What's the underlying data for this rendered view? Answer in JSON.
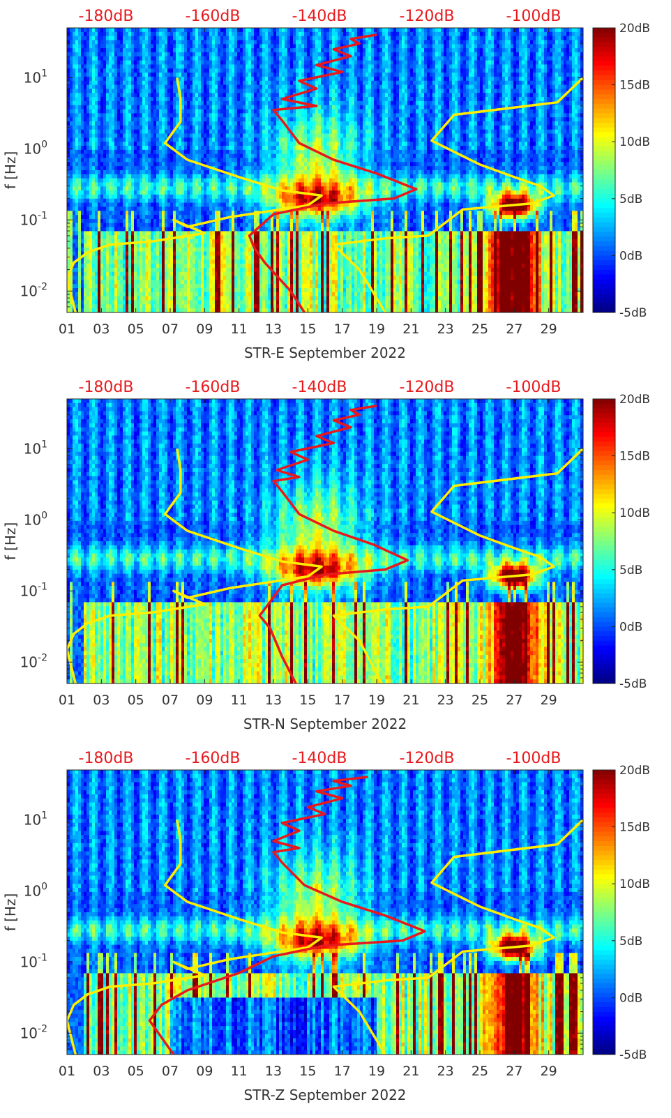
{
  "colors": {
    "spectrum_curve": "#ffee00",
    "noise_curve": "#e8191c",
    "top_axis_label": "#e8191c",
    "colormap": "jet"
  },
  "colorbar": {
    "ticks": [
      "20dB",
      "15dB",
      "10dB",
      "5dB",
      "0dB",
      "-5dB"
    ],
    "range": [
      -5,
      20
    ]
  },
  "top_axis": {
    "ticks": [
      "-180dB",
      "-160dB",
      "-140dB",
      "-120dB",
      "-100dB"
    ]
  },
  "chart_data": [
    {
      "type": "heatmap",
      "title": "",
      "xlabel": "STR-E September 2022",
      "ylabel": "f [Hz]",
      "x_ticks": [
        "01",
        "03",
        "05",
        "07",
        "09",
        "11",
        "13",
        "15",
        "17",
        "19",
        "21",
        "23",
        "25",
        "27",
        "29"
      ],
      "y_ticks": [
        "10^1",
        "10^0",
        "10^-1",
        "10^-2"
      ],
      "y_scale": "log",
      "ylim": [
        0.005,
        50
      ],
      "xlim": [
        1,
        31
      ],
      "overlays": [
        {
          "color": "yellow",
          "points": [
            [
              7.4,
              10
            ],
            [
              7.6,
              5
            ],
            [
              7.6,
              2.4
            ],
            [
              6.7,
              1.2
            ],
            [
              8,
              0.7
            ],
            [
              11,
              0.4
            ],
            [
              13.5,
              0.26
            ],
            [
              15.8,
              0.22
            ],
            [
              15,
              0.16
            ],
            [
              10.5,
              0.11
            ],
            [
              8,
              0.08
            ],
            [
              7.2,
              0.1
            ],
            [
              9,
              0.065
            ],
            [
              6,
              0.05
            ],
            [
              3.5,
              0.045
            ],
            [
              2.2,
              0.035
            ],
            [
              1.4,
              0.025
            ],
            [
              1,
              0.015
            ],
            [
              1.5,
              0.005
            ]
          ]
        },
        {
          "color": "yellow",
          "points": [
            [
              31,
              10
            ],
            [
              29.5,
              4.5
            ],
            [
              23.5,
              3
            ],
            [
              22.2,
              1.3
            ],
            [
              25,
              0.6
            ],
            [
              27,
              0.4
            ],
            [
              28.5,
              0.3
            ],
            [
              29.3,
              0.22
            ],
            [
              28,
              0.17
            ],
            [
              24,
              0.14
            ],
            [
              22,
              0.06
            ],
            [
              19.5,
              0.055
            ],
            [
              16.5,
              0.045
            ],
            [
              18,
              0.02
            ],
            [
              19.5,
              0.005
            ]
          ]
        },
        {
          "color": "red",
          "points": [
            [
              19,
              40
            ],
            [
              17.5,
              35
            ],
            [
              18,
              30
            ],
            [
              16.5,
              25
            ],
            [
              17.5,
              20
            ],
            [
              15.5,
              15
            ],
            [
              17,
              12
            ],
            [
              14.5,
              9
            ],
            [
              15.5,
              7
            ],
            [
              13.5,
              5
            ],
            [
              15.5,
              4
            ],
            [
              13,
              3.5
            ],
            [
              13.5,
              2.5
            ],
            [
              14.5,
              1.2
            ],
            [
              16.5,
              0.7
            ],
            [
              19,
              0.45
            ],
            [
              21.3,
              0.27
            ],
            [
              20,
              0.2
            ],
            [
              16,
              0.17
            ],
            [
              13,
              0.12
            ],
            [
              11.6,
              0.06
            ],
            [
              11.9,
              0.04
            ],
            [
              12.5,
              0.025
            ],
            [
              14,
              0.01
            ],
            [
              14.8,
              0.005
            ]
          ]
        }
      ]
    },
    {
      "type": "heatmap",
      "title": "",
      "xlabel": "STR-N September 2022",
      "ylabel": "f [Hz]",
      "x_ticks": [
        "01",
        "03",
        "05",
        "07",
        "09",
        "11",
        "13",
        "15",
        "17",
        "19",
        "21",
        "23",
        "25",
        "27",
        "29"
      ],
      "y_ticks": [
        "10^1",
        "10^0",
        "10^-1",
        "10^-2"
      ],
      "y_scale": "log",
      "ylim": [
        0.005,
        50
      ],
      "xlim": [
        1,
        31
      ],
      "overlays": [
        {
          "color": "yellow",
          "points": [
            [
              7.4,
              10
            ],
            [
              7.6,
              5
            ],
            [
              7.6,
              2.4
            ],
            [
              6.7,
              1.2
            ],
            [
              8,
              0.7
            ],
            [
              11,
              0.4
            ],
            [
              13.5,
              0.26
            ],
            [
              15.8,
              0.22
            ],
            [
              15,
              0.16
            ],
            [
              10.5,
              0.11
            ],
            [
              8,
              0.08
            ],
            [
              7.2,
              0.1
            ],
            [
              9,
              0.065
            ],
            [
              6,
              0.05
            ],
            [
              3.5,
              0.045
            ],
            [
              2.2,
              0.035
            ],
            [
              1.4,
              0.025
            ],
            [
              1,
              0.015
            ],
            [
              1.5,
              0.005
            ]
          ]
        },
        {
          "color": "yellow",
          "points": [
            [
              31,
              10
            ],
            [
              29.5,
              4.5
            ],
            [
              23.5,
              3
            ],
            [
              22.2,
              1.3
            ],
            [
              25,
              0.6
            ],
            [
              27,
              0.4
            ],
            [
              28.5,
              0.3
            ],
            [
              29.3,
              0.22
            ],
            [
              28,
              0.17
            ],
            [
              24,
              0.14
            ],
            [
              22,
              0.06
            ],
            [
              19.5,
              0.055
            ],
            [
              16.5,
              0.045
            ],
            [
              18,
              0.02
            ],
            [
              19.3,
              0.005
            ]
          ]
        },
        {
          "color": "red",
          "points": [
            [
              19,
              40
            ],
            [
              17.5,
              35
            ],
            [
              18,
              30
            ],
            [
              16.5,
              25
            ],
            [
              17.5,
              20
            ],
            [
              15.5,
              15
            ],
            [
              16.5,
              12
            ],
            [
              14,
              9
            ],
            [
              15,
              7
            ],
            [
              13.2,
              5
            ],
            [
              14.5,
              4
            ],
            [
              13,
              3.5
            ],
            [
              13.5,
              2.5
            ],
            [
              14.5,
              1.2
            ],
            [
              16.5,
              0.7
            ],
            [
              18.8,
              0.45
            ],
            [
              20.8,
              0.27
            ],
            [
              19.5,
              0.2
            ],
            [
              16,
              0.17
            ],
            [
              13.5,
              0.12
            ],
            [
              12.8,
              0.07
            ],
            [
              12.2,
              0.045
            ],
            [
              12.8,
              0.03
            ],
            [
              13.5,
              0.012
            ],
            [
              14.3,
              0.005
            ]
          ]
        }
      ]
    },
    {
      "type": "heatmap",
      "title": "",
      "xlabel": "STR-Z September 2022",
      "ylabel": "f [Hz]",
      "x_ticks": [
        "01",
        "03",
        "05",
        "07",
        "09",
        "11",
        "13",
        "15",
        "17",
        "19",
        "21",
        "23",
        "25",
        "27",
        "29"
      ],
      "y_ticks": [
        "10^1",
        "10^0",
        "10^-1",
        "10^-2"
      ],
      "y_scale": "log",
      "ylim": [
        0.005,
        50
      ],
      "xlim": [
        1,
        31
      ],
      "overlays": [
        {
          "color": "yellow",
          "points": [
            [
              7.4,
              10
            ],
            [
              7.6,
              5
            ],
            [
              7.6,
              2.4
            ],
            [
              6.7,
              1.2
            ],
            [
              8,
              0.7
            ],
            [
              11,
              0.4
            ],
            [
              13.5,
              0.26
            ],
            [
              15.8,
              0.22
            ],
            [
              15,
              0.16
            ],
            [
              10.5,
              0.11
            ],
            [
              8,
              0.08
            ],
            [
              7.2,
              0.1
            ],
            [
              9,
              0.065
            ],
            [
              6,
              0.05
            ],
            [
              3.5,
              0.045
            ],
            [
              2.2,
              0.035
            ],
            [
              1.4,
              0.025
            ],
            [
              1,
              0.015
            ],
            [
              1.5,
              0.005
            ]
          ]
        },
        {
          "color": "yellow",
          "points": [
            [
              31,
              10
            ],
            [
              29.5,
              4.5
            ],
            [
              23.5,
              3
            ],
            [
              22.2,
              1.3
            ],
            [
              25,
              0.6
            ],
            [
              27,
              0.4
            ],
            [
              28.5,
              0.3
            ],
            [
              29.3,
              0.22
            ],
            [
              28,
              0.17
            ],
            [
              24,
              0.14
            ],
            [
              22,
              0.06
            ],
            [
              19.5,
              0.055
            ],
            [
              16.5,
              0.045
            ],
            [
              18,
              0.02
            ],
            [
              19.5,
              0.005
            ]
          ]
        },
        {
          "color": "red",
          "points": [
            [
              18.5,
              40
            ],
            [
              16.5,
              35
            ],
            [
              17.5,
              30
            ],
            [
              15.5,
              25
            ],
            [
              17,
              20
            ],
            [
              15,
              15
            ],
            [
              16,
              12
            ],
            [
              13.5,
              9
            ],
            [
              14.5,
              7
            ],
            [
              13,
              5
            ],
            [
              14.5,
              4
            ],
            [
              13,
              3.5
            ],
            [
              13.5,
              2.5
            ],
            [
              14.8,
              1.2
            ],
            [
              17,
              0.7
            ],
            [
              19.5,
              0.45
            ],
            [
              21.8,
              0.27
            ],
            [
              20.5,
              0.2
            ],
            [
              16,
              0.17
            ],
            [
              13,
              0.12
            ],
            [
              11,
              0.07
            ],
            [
              8,
              0.04
            ],
            [
              6.5,
              0.025
            ],
            [
              5.8,
              0.015
            ],
            [
              7.2,
              0.005
            ]
          ]
        }
      ]
    }
  ]
}
